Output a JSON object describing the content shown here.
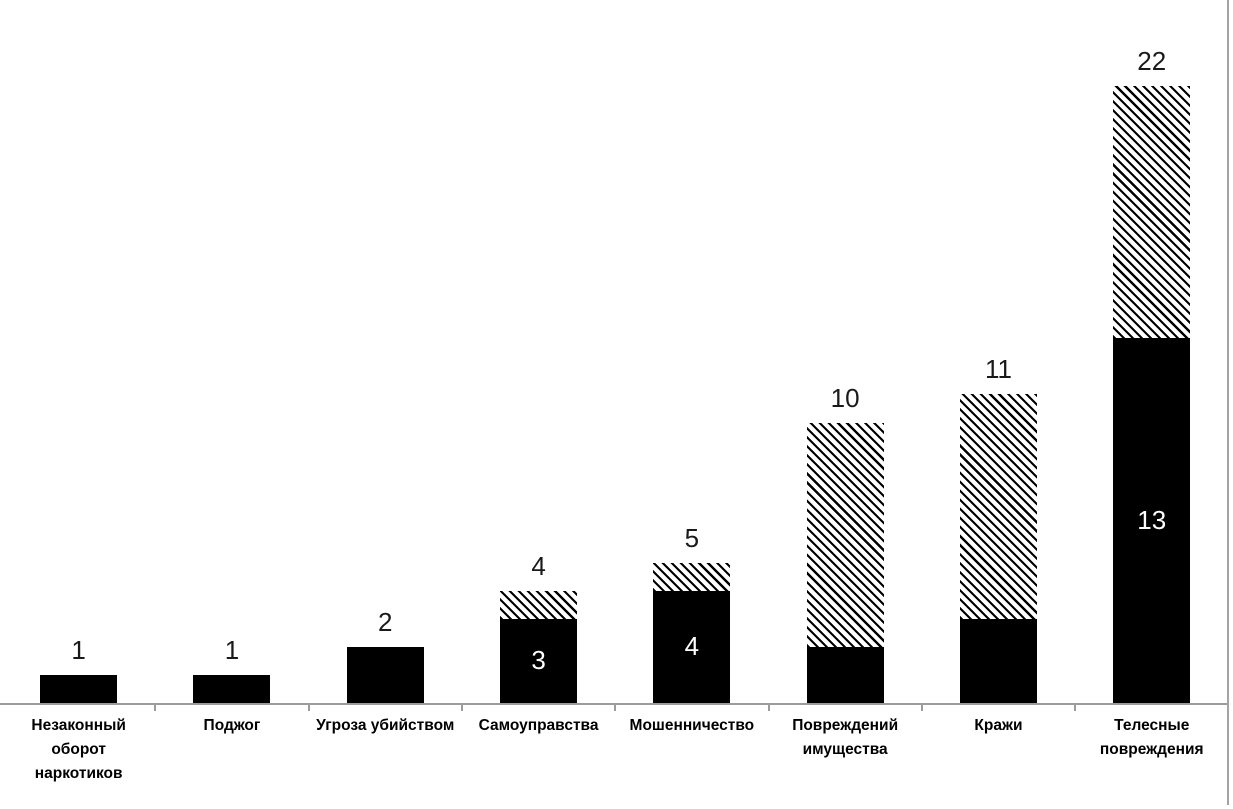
{
  "chart_data": {
    "type": "bar",
    "stacked": true,
    "orientation": "vertical",
    "title": "",
    "xlabel": "",
    "ylabel": "",
    "ylim": [
      0,
      22
    ],
    "grid": false,
    "legend": false,
    "categories": [
      "Незаконный\nоборот\nнаркотиков",
      "Поджог",
      "Угроза убийством",
      "Самоуправства",
      "Мошенничество",
      "Повреждений\nимущества",
      "Кражи",
      "Телесные\nповреждения"
    ],
    "series": [
      {
        "name": "solid-black-segment",
        "fill": "solid",
        "color": "#000000",
        "values": [
          1,
          1,
          2,
          3,
          4,
          2,
          3,
          13
        ]
      },
      {
        "name": "diagonal-hatch-segment",
        "fill": "diagonal-hatch",
        "color": "#000000",
        "background": "#ffffff",
        "values": [
          0,
          0,
          0,
          1,
          1,
          8,
          8,
          9
        ]
      }
    ],
    "totals": [
      1,
      1,
      2,
      4,
      5,
      10,
      11,
      22
    ],
    "total_labels": [
      "1",
      "1",
      "2",
      "4",
      "5",
      "10",
      "11",
      "22"
    ],
    "inner_labels": [
      "",
      "",
      "",
      "3",
      "4",
      "",
      "",
      "13"
    ],
    "colors": {
      "axis": "#9c9c9c",
      "tick": "#9c9c9c",
      "chart_border": "#a3a3a3",
      "total_label": "#1a1a1a",
      "inner_label": "#ffffff",
      "category_label": "#000000",
      "background": "#ffffff"
    }
  }
}
